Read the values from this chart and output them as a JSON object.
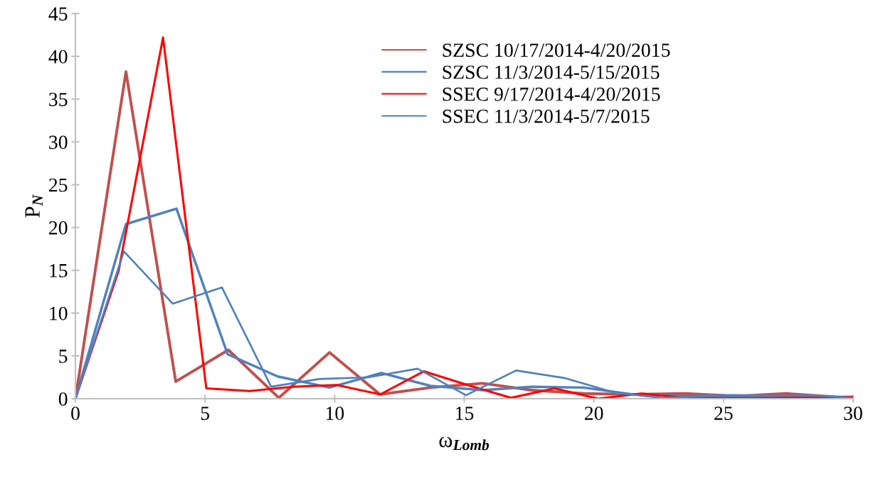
{
  "chart_data": {
    "type": "line",
    "xlabel": "ω$_{Lomb}$",
    "ylabel": "P$_{N}$",
    "xlim": [
      0,
      30
    ],
    "ylim": [
      0,
      45
    ],
    "xticks": [
      0,
      5,
      10,
      15,
      20,
      25,
      30
    ],
    "yticks": [
      0,
      5,
      10,
      15,
      20,
      25,
      30,
      35,
      40,
      45
    ],
    "grid": false,
    "legend": "top",
    "marker": "none",
    "line_style": "solid",
    "series": [
      {
        "name": "SZSC 10/17/2014-4/20/2015",
        "color": "#c0504d",
        "x": [
          0,
          1.95,
          3.87,
          5.9,
          7.85,
          9.8,
          11.75,
          13.7,
          15.7,
          17.6,
          19.6,
          21.5,
          23.5,
          25.5,
          27.4,
          29.4,
          30
        ],
        "values": [
          0,
          38.2,
          2.0,
          5.7,
          0.1,
          5.4,
          0.5,
          1.3,
          1.8,
          1.0,
          0.6,
          0.5,
          0.6,
          0.3,
          0.6,
          0.2,
          0.1
        ]
      },
      {
        "name": "SZSC 11/3/2014-5/15/2015",
        "color": "#4f81bd",
        "x": [
          0,
          1.95,
          3.9,
          5.87,
          7.8,
          9.8,
          11.8,
          13.7,
          15.7,
          17.6,
          19.6,
          21.5,
          23.5,
          25.4,
          27.4,
          29.3,
          30
        ],
        "values": [
          0,
          20.4,
          22.2,
          5.2,
          2.6,
          1.3,
          3.0,
          1.5,
          1.0,
          1.4,
          1.3,
          0.5,
          0.3,
          0.4,
          0.3,
          0.2,
          0.2
        ]
      },
      {
        "name": "SSEC 9/17/2014-4/20/2015",
        "color": "#ff0000",
        "x": [
          0,
          1.67,
          3.38,
          5.05,
          6.72,
          8.4,
          10.08,
          11.76,
          13.44,
          15.12,
          16.8,
          18.48,
          20.16,
          21.84,
          23.52,
          25.2,
          26.88,
          28.56,
          30
        ],
        "values": [
          0,
          15,
          42.2,
          1.2,
          0.9,
          1.4,
          1.6,
          0.5,
          3.2,
          1.6,
          0.1,
          1.2,
          0.0,
          0.6,
          0.1,
          0.2,
          0.1,
          0.1,
          0.2
        ]
      },
      {
        "name": "SSEC 11/3/2014-5/7/2015",
        "color": "#4f81bd",
        "x": [
          0,
          1.87,
          3.76,
          5.65,
          7.55,
          9.4,
          11.3,
          13.2,
          15.07,
          17.0,
          18.9,
          20.8,
          22.6,
          24.5,
          26.4,
          28.3,
          30
        ],
        "values": [
          0,
          17.2,
          11.1,
          13.0,
          1.4,
          2.3,
          2.5,
          3.5,
          0.4,
          3.3,
          2.4,
          0.7,
          0.1,
          0.3,
          0.3,
          0.4,
          0.1
        ]
      }
    ]
  }
}
